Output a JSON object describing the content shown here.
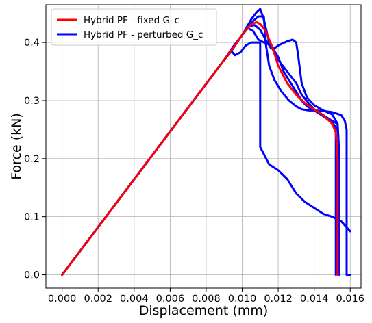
{
  "chart_data": {
    "type": "line",
    "title": "",
    "xlabel": "Displacement (mm)",
    "ylabel": "Force (kN)",
    "xlim": [
      -0.0009,
      0.0166
    ],
    "ylim": [
      -0.023,
      0.465
    ],
    "xticks": [
      0.0,
      0.002,
      0.004,
      0.006,
      0.008,
      0.01,
      0.012,
      0.014,
      0.016
    ],
    "xtick_labels": [
      "0.000",
      "0.002",
      "0.004",
      "0.006",
      "0.008",
      "0.010",
      "0.012",
      "0.014",
      "0.016"
    ],
    "yticks": [
      0.0,
      0.1,
      0.2,
      0.3,
      0.4
    ],
    "ytick_labels": [
      "0.0",
      "0.1",
      "0.2",
      "0.3",
      "0.4"
    ],
    "grid": true,
    "legend_position": "top-left",
    "series": [
      {
        "name": "Hybrid PF - fixed G_c",
        "color": "#ff0000",
        "points": [
          [
            0.0,
            0.0
          ],
          [
            0.009,
            0.37
          ],
          [
            0.0096,
            0.395
          ],
          [
            0.0101,
            0.418
          ],
          [
            0.0105,
            0.432
          ],
          [
            0.0108,
            0.435
          ],
          [
            0.011,
            0.432
          ],
          [
            0.0113,
            0.42
          ],
          [
            0.0117,
            0.39
          ],
          [
            0.012,
            0.36
          ],
          [
            0.0125,
            0.33
          ],
          [
            0.013,
            0.31
          ],
          [
            0.0135,
            0.295
          ],
          [
            0.014,
            0.285
          ],
          [
            0.0145,
            0.275
          ],
          [
            0.015,
            0.26
          ],
          [
            0.0152,
            0.245
          ],
          [
            0.0153,
            0.2
          ],
          [
            0.0153,
            0.0
          ]
        ]
      },
      {
        "name": "Hybrid PF - perturbed G_c",
        "color": "#0000ff",
        "show_in_legend": true,
        "points": [
          [
            0.0,
            0.0
          ],
          [
            0.009,
            0.37
          ],
          [
            0.0096,
            0.395
          ],
          [
            0.0101,
            0.418
          ],
          [
            0.0105,
            0.44
          ],
          [
            0.0108,
            0.452
          ],
          [
            0.011,
            0.458
          ],
          [
            0.0112,
            0.44
          ],
          [
            0.0115,
            0.4
          ],
          [
            0.012,
            0.37
          ],
          [
            0.0125,
            0.35
          ],
          [
            0.013,
            0.33
          ],
          [
            0.0133,
            0.31
          ],
          [
            0.0137,
            0.295
          ],
          [
            0.014,
            0.285
          ],
          [
            0.0145,
            0.275
          ],
          [
            0.015,
            0.265
          ],
          [
            0.0153,
            0.26
          ],
          [
            0.0154,
            0.2
          ],
          [
            0.0154,
            0.0
          ]
        ]
      },
      {
        "name": "",
        "color": "#0000ff",
        "show_in_legend": false,
        "points": [
          [
            0.0,
            0.0
          ],
          [
            0.009,
            0.37
          ],
          [
            0.0095,
            0.39
          ],
          [
            0.01,
            0.413
          ],
          [
            0.0103,
            0.425
          ],
          [
            0.0106,
            0.42
          ],
          [
            0.0109,
            0.405
          ],
          [
            0.0112,
            0.4
          ],
          [
            0.0116,
            0.395
          ],
          [
            0.012,
            0.375
          ],
          [
            0.0123,
            0.35
          ],
          [
            0.0127,
            0.33
          ],
          [
            0.013,
            0.315
          ],
          [
            0.0133,
            0.3
          ],
          [
            0.0136,
            0.29
          ],
          [
            0.014,
            0.283
          ],
          [
            0.0145,
            0.273
          ],
          [
            0.015,
            0.262
          ],
          [
            0.0152,
            0.255
          ],
          [
            0.0152,
            0.0
          ]
        ]
      },
      {
        "name": "",
        "color": "#0000ff",
        "show_in_legend": false,
        "points": [
          [
            0.0,
            0.0
          ],
          [
            0.009,
            0.37
          ],
          [
            0.0095,
            0.39
          ],
          [
            0.01,
            0.413
          ],
          [
            0.0104,
            0.428
          ],
          [
            0.0107,
            0.43
          ],
          [
            0.011,
            0.422
          ],
          [
            0.0113,
            0.405
          ],
          [
            0.0116,
            0.39
          ],
          [
            0.0118,
            0.39
          ],
          [
            0.012,
            0.395
          ],
          [
            0.0125,
            0.402
          ],
          [
            0.0128,
            0.405
          ],
          [
            0.013,
            0.4
          ],
          [
            0.0131,
            0.38
          ],
          [
            0.0133,
            0.33
          ],
          [
            0.0136,
            0.305
          ],
          [
            0.014,
            0.292
          ],
          [
            0.0145,
            0.283
          ],
          [
            0.015,
            0.276
          ],
          [
            0.0153,
            0.26
          ],
          [
            0.0154,
            0.2
          ],
          [
            0.0154,
            0.0
          ]
        ]
      },
      {
        "name": "",
        "color": "#0000ff",
        "show_in_legend": false,
        "points": [
          [
            0.0,
            0.0
          ],
          [
            0.009,
            0.37
          ],
          [
            0.0095,
            0.393
          ],
          [
            0.0102,
            0.421
          ],
          [
            0.0106,
            0.437
          ],
          [
            0.0109,
            0.445
          ],
          [
            0.0112,
            0.445
          ],
          [
            0.0113,
            0.4
          ],
          [
            0.0115,
            0.36
          ],
          [
            0.0118,
            0.335
          ],
          [
            0.0122,
            0.315
          ],
          [
            0.0126,
            0.3
          ],
          [
            0.013,
            0.29
          ],
          [
            0.0133,
            0.285
          ],
          [
            0.0137,
            0.283
          ],
          [
            0.014,
            0.283
          ],
          [
            0.0145,
            0.282
          ],
          [
            0.015,
            0.28
          ],
          [
            0.0155,
            0.275
          ],
          [
            0.0157,
            0.265
          ],
          [
            0.0158,
            0.25
          ],
          [
            0.0158,
            0.0
          ],
          [
            0.016,
            0.0
          ]
        ]
      },
      {
        "name": "",
        "color": "#0000ff",
        "show_in_legend": false,
        "points": [
          [
            0.0,
            0.0
          ],
          [
            0.009,
            0.37
          ],
          [
            0.0094,
            0.385
          ],
          [
            0.0096,
            0.378
          ],
          [
            0.0099,
            0.383
          ],
          [
            0.0102,
            0.395
          ],
          [
            0.0105,
            0.4
          ],
          [
            0.0108,
            0.4
          ],
          [
            0.011,
            0.4
          ],
          [
            0.011,
            0.3
          ],
          [
            0.011,
            0.22
          ],
          [
            0.0115,
            0.19
          ],
          [
            0.012,
            0.18
          ],
          [
            0.0125,
            0.165
          ],
          [
            0.013,
            0.14
          ],
          [
            0.0135,
            0.125
          ],
          [
            0.014,
            0.115
          ],
          [
            0.0145,
            0.105
          ],
          [
            0.015,
            0.1
          ],
          [
            0.0155,
            0.092
          ],
          [
            0.016,
            0.075
          ]
        ]
      }
    ]
  }
}
